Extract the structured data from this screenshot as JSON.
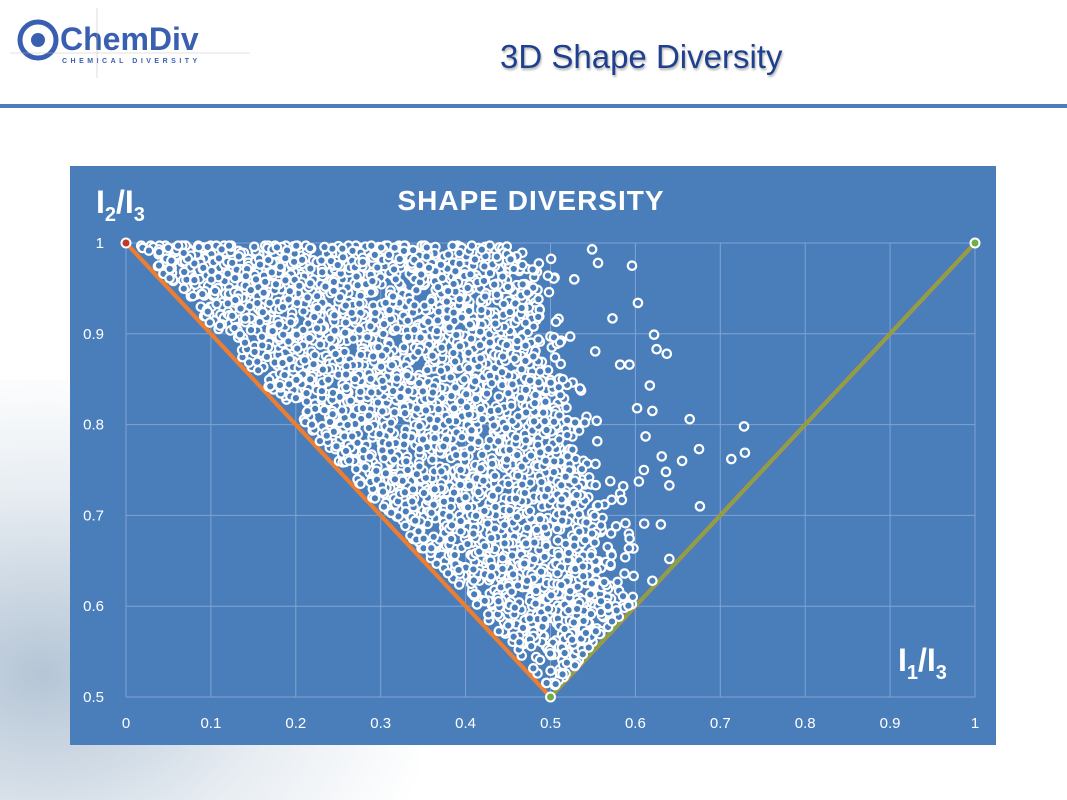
{
  "header": {
    "logo_text": "ChemDiv",
    "logo_subtext": "CHEMICAL DIVERSITY",
    "title": "3D Shape Diversity"
  },
  "chart_data": {
    "type": "scatter",
    "title": "SHAPE DIVERSITY",
    "xlabel_main": "I",
    "xlabel_sub1": "1",
    "xlabel_sep": "/I",
    "xlabel_sub2": "3",
    "ylabel_main": "I",
    "ylabel_sub1": "2",
    "ylabel_sep": "/I",
    "ylabel_sub2": "3",
    "xlim": [
      0,
      1
    ],
    "ylim": [
      0.5,
      1
    ],
    "xticks": [
      "0",
      "0.1",
      "0.2",
      "0.3",
      "0.4",
      "0.5",
      "0.6",
      "0.7",
      "0.8",
      "0.9",
      "1"
    ],
    "yticks": [
      "0.5",
      "0.6",
      "0.7",
      "0.8",
      "0.9",
      "1"
    ],
    "grid": true,
    "colors": {
      "background": "#4a7ebb",
      "points": "#ffffff",
      "rod_disc": "#ed7d31",
      "disc_sphere": "#70ad47",
      "rod_marker": "#c0392b"
    },
    "reference_lines": [
      {
        "name": "rod-disc",
        "x": [
          0,
          0.5
        ],
        "y": [
          1,
          0.5
        ]
      },
      {
        "name": "rod-sphere",
        "x": [
          0,
          0.5,
          1
        ],
        "y": [
          1,
          0.5,
          1
        ]
      },
      {
        "name": "disc-sphere",
        "x": [
          0.5,
          1
        ],
        "y": [
          0.5,
          1
        ]
      }
    ],
    "reference_markers": [
      {
        "x": 0,
        "y": 1,
        "kind": "rod"
      },
      {
        "x": 0.5,
        "y": 0.5,
        "kind": "disc"
      },
      {
        "x": 1,
        "y": 1,
        "kind": "sphere"
      }
    ],
    "dense_cloud": {
      "count": 3200,
      "lower_bound": "y >= 1 - x",
      "x_edge_at_y1": 0.45,
      "x_edge_at_y05": 0.6
    },
    "outlier_points": [
      [
        0.549,
        0.993
      ],
      [
        0.556,
        0.978
      ],
      [
        0.596,
        0.975
      ],
      [
        0.603,
        0.934
      ],
      [
        0.622,
        0.899
      ],
      [
        0.625,
        0.883
      ],
      [
        0.637,
        0.878
      ],
      [
        0.664,
        0.806
      ],
      [
        0.675,
        0.773
      ],
      [
        0.655,
        0.76
      ],
      [
        0.728,
        0.798
      ],
      [
        0.729,
        0.769
      ],
      [
        0.713,
        0.762
      ],
      [
        0.676,
        0.71
      ],
      [
        0.497,
        0.964
      ],
      [
        0.528,
        0.96
      ],
      [
        0.453,
        0.982
      ],
      [
        0.573,
        0.917
      ],
      [
        0.617,
        0.843
      ],
      [
        0.582,
        0.866
      ],
      [
        0.593,
        0.866
      ],
      [
        0.631,
        0.765
      ],
      [
        0.612,
        0.787
      ],
      [
        0.636,
        0.748
      ],
      [
        0.64,
        0.733
      ],
      [
        0.602,
        0.818
      ],
      [
        0.62,
        0.815
      ],
      [
        0.61,
        0.75
      ],
      [
        0.64,
        0.652
      ],
      [
        0.62,
        0.628
      ],
      [
        0.63,
        0.69
      ]
    ]
  }
}
